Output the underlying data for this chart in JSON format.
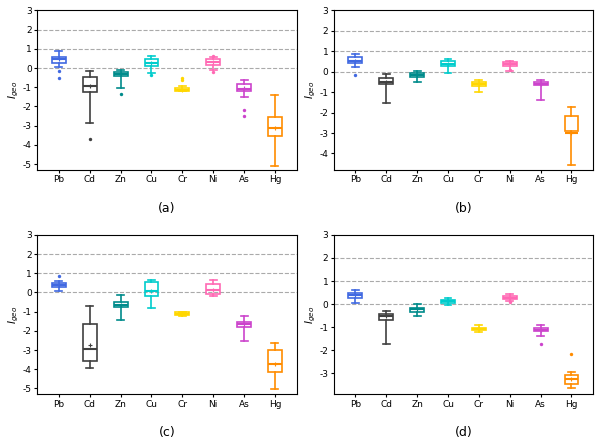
{
  "categories": [
    "Pb",
    "Cd",
    "Zn",
    "Cu",
    "Cr",
    "Ni",
    "As",
    "Hg"
  ],
  "colors": [
    "#4169E1",
    "#404040",
    "#008B8B",
    "#00CCCC",
    "#FFD700",
    "#FF69B4",
    "#CC44CC",
    "#FF8C00"
  ],
  "subplot_labels": [
    "(a)",
    "(b)",
    "(c)",
    "(d)"
  ],
  "ylabel": "$I_{geo}$",
  "hlines": [
    0,
    1,
    2
  ],
  "ylims": {
    "a": [
      -5.3,
      3.0
    ],
    "b": [
      -4.8,
      3.0
    ],
    "c": [
      -5.3,
      3.0
    ],
    "d": [
      -3.9,
      3.0
    ]
  },
  "yticks": {
    "a": [
      -5,
      -4,
      -3,
      -2,
      -1,
      0,
      1,
      2,
      3
    ],
    "b": [
      -4,
      -3,
      -2,
      -1,
      0,
      1,
      2,
      3
    ],
    "c": [
      -5,
      -4,
      -3,
      -2,
      -1,
      0,
      1,
      2,
      3
    ],
    "d": [
      -3,
      -2,
      -1,
      0,
      1,
      2,
      3
    ]
  },
  "panels": {
    "a": {
      "Pb": {
        "q1": 0.28,
        "med": 0.45,
        "q3": 0.6,
        "mean": 0.45,
        "whislo": 0.05,
        "whishi": 0.88,
        "fliers": [
          -0.15,
          -0.5
        ]
      },
      "Cd": {
        "q1": -1.25,
        "med": -0.95,
        "q3": -0.45,
        "mean": -0.95,
        "whislo": -2.85,
        "whishi": -0.15,
        "fliers": [
          -3.7
        ]
      },
      "Zn": {
        "q1": -0.42,
        "med": -0.32,
        "q3": -0.22,
        "mean": -0.32,
        "whislo": -1.05,
        "whishi": -0.08,
        "fliers": [
          -1.35
        ]
      },
      "Cu": {
        "q1": 0.12,
        "med": 0.28,
        "q3": 0.48,
        "mean": 0.28,
        "whislo": -0.28,
        "whishi": 0.62,
        "fliers": [
          -0.35
        ]
      },
      "Cr": {
        "q1": -1.18,
        "med": -1.12,
        "q3": -1.02,
        "mean": -1.12,
        "whislo": -1.22,
        "whishi": -0.92,
        "fliers": [
          -0.62,
          -0.52
        ]
      },
      "Ni": {
        "q1": 0.18,
        "med": 0.32,
        "q3": 0.48,
        "mean": 0.32,
        "whislo": -0.08,
        "whishi": 0.58,
        "fliers": [
          -0.18,
          0.62
        ]
      },
      "As": {
        "q1": -1.18,
        "med": -1.08,
        "q3": -0.82,
        "mean": -1.05,
        "whislo": -1.52,
        "whishi": -0.62,
        "fliers": [
          -2.2,
          -2.5
        ]
      },
      "Hg": {
        "q1": -3.55,
        "med": -3.1,
        "q3": -2.55,
        "mean": -3.1,
        "whislo": -5.1,
        "whishi": -1.42,
        "fliers": []
      }
    },
    "b": {
      "Pb": {
        "q1": 0.42,
        "med": 0.55,
        "q3": 0.7,
        "mean": 0.55,
        "whislo": 0.22,
        "whishi": 0.88,
        "fliers": [
          -0.18
        ]
      },
      "Cd": {
        "q1": -0.62,
        "med": -0.5,
        "q3": -0.32,
        "mean": -0.5,
        "whislo": -1.52,
        "whishi": -0.12,
        "fliers": []
      },
      "Zn": {
        "q1": -0.25,
        "med": -0.18,
        "q3": -0.08,
        "mean": -0.18,
        "whislo": -0.52,
        "whishi": 0.05,
        "fliers": []
      },
      "Cu": {
        "q1": 0.28,
        "med": 0.4,
        "q3": 0.52,
        "mean": 0.4,
        "whislo": -0.08,
        "whishi": 0.62,
        "fliers": []
      },
      "Cr": {
        "q1": -0.72,
        "med": -0.62,
        "q3": -0.52,
        "mean": -0.62,
        "whislo": -0.98,
        "whishi": -0.38,
        "fliers": []
      },
      "Ni": {
        "q1": 0.28,
        "med": 0.38,
        "q3": 0.48,
        "mean": 0.38,
        "whislo": 0.05,
        "whishi": 0.52,
        "fliers": [
          0.08
        ]
      },
      "As": {
        "q1": -0.65,
        "med": -0.58,
        "q3": -0.52,
        "mean": -0.58,
        "whislo": -1.38,
        "whishi": -0.38,
        "fliers": []
      },
      "Hg": {
        "q1": -2.88,
        "med": -2.98,
        "q3": -2.18,
        "mean": -2.98,
        "whislo": -4.58,
        "whishi": -1.72,
        "fliers": []
      }
    },
    "c": {
      "Pb": {
        "q1": 0.28,
        "med": 0.38,
        "q3": 0.48,
        "mean": 0.38,
        "whislo": 0.05,
        "whishi": 0.58,
        "fliers": [
          0.88
        ]
      },
      "Cd": {
        "q1": -3.55,
        "med": -2.95,
        "q3": -1.65,
        "mean": -2.75,
        "whislo": -3.92,
        "whishi": -0.72,
        "fliers": []
      },
      "Zn": {
        "q1": -0.78,
        "med": -0.65,
        "q3": -0.48,
        "mean": -0.65,
        "whislo": -1.42,
        "whishi": -0.12,
        "fliers": []
      },
      "Cu": {
        "q1": -0.18,
        "med": 0.05,
        "q3": 0.55,
        "mean": 0.05,
        "whislo": -0.82,
        "whishi": 0.65,
        "fliers": []
      },
      "Cr": {
        "q1": -1.18,
        "med": -1.12,
        "q3": -1.02,
        "mean": -1.12,
        "whislo": -1.22,
        "whishi": -1.02,
        "fliers": []
      },
      "Ni": {
        "q1": -0.08,
        "med": 0.12,
        "q3": 0.42,
        "mean": 0.12,
        "whislo": -0.18,
        "whishi": 0.65,
        "fliers": []
      },
      "As": {
        "q1": -1.82,
        "med": -1.65,
        "q3": -1.52,
        "mean": -1.65,
        "whislo": -2.52,
        "whishi": -1.22,
        "fliers": []
      },
      "Hg": {
        "q1": -4.12,
        "med": -3.72,
        "q3": -3.02,
        "mean": -3.72,
        "whislo": -5.05,
        "whishi": -2.62,
        "fliers": []
      }
    },
    "d": {
      "Pb": {
        "q1": 0.28,
        "med": 0.38,
        "q3": 0.48,
        "mean": 0.38,
        "whislo": 0.05,
        "whishi": 0.62,
        "fliers": []
      },
      "Cd": {
        "q1": -0.68,
        "med": -0.52,
        "q3": -0.42,
        "mean": -0.52,
        "whislo": -1.72,
        "whishi": -0.28,
        "fliers": []
      },
      "Zn": {
        "q1": -0.32,
        "med": -0.22,
        "q3": -0.15,
        "mean": -0.22,
        "whislo": -0.52,
        "whishi": 0.0,
        "fliers": []
      },
      "Cu": {
        "q1": 0.05,
        "med": 0.12,
        "q3": 0.18,
        "mean": 0.12,
        "whislo": -0.05,
        "whishi": 0.28,
        "fliers": []
      },
      "Cr": {
        "q1": -1.12,
        "med": -1.08,
        "q3": -1.02,
        "mean": -1.08,
        "whislo": -1.22,
        "whishi": -0.92,
        "fliers": []
      },
      "Ni": {
        "q1": 0.22,
        "med": 0.28,
        "q3": 0.35,
        "mean": 0.28,
        "whislo": 0.12,
        "whishi": 0.42,
        "fliers": [
          0.08
        ]
      },
      "As": {
        "q1": -1.18,
        "med": -1.12,
        "q3": -1.05,
        "mean": -1.12,
        "whislo": -1.38,
        "whishi": -0.92,
        "fliers": [
          -1.72
        ]
      },
      "Hg": {
        "q1": -3.45,
        "med": -3.25,
        "q3": -3.05,
        "mean": -3.25,
        "whislo": -3.62,
        "whishi": -2.92,
        "fliers": [
          -2.18
        ]
      }
    }
  }
}
